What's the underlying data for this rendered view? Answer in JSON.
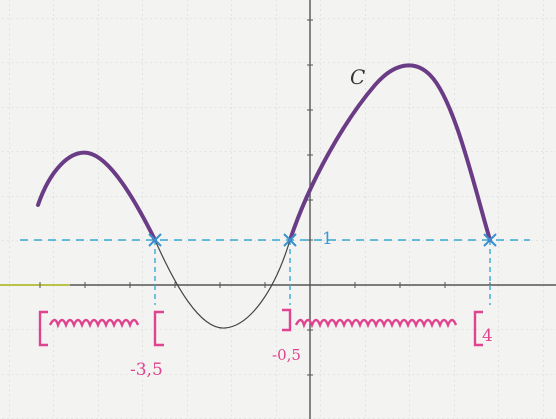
{
  "graph": {
    "curve_label": "C",
    "line_label": "1",
    "bounds": [
      "-3,5",
      "-0,5",
      "4"
    ]
  }
}
